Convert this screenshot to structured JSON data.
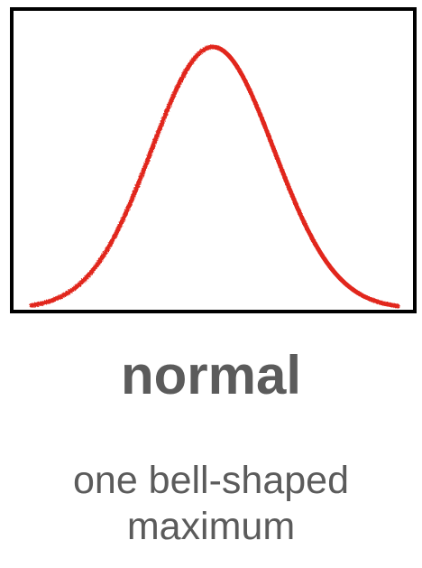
{
  "title": "normal",
  "caption": {
    "line1": "one bell-shaped",
    "line2": "maximum"
  },
  "curve": {
    "shape": "normal distribution (single bell-shaped peak)",
    "color": "#e1261c",
    "frame_color": "#000000"
  },
  "text_color": "#5b5b5b"
}
